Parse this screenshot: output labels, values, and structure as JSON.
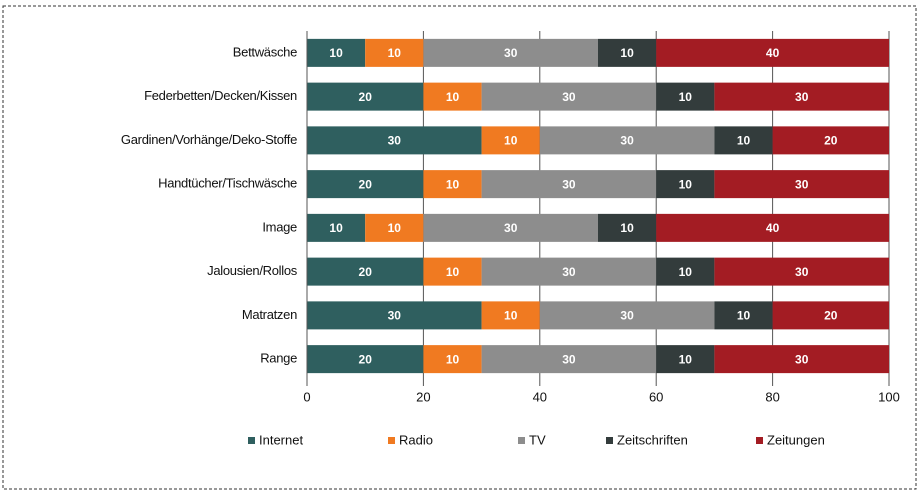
{
  "chart_data": {
    "type": "stacked-bar-horizontal",
    "categories": [
      "Bettwäsche",
      "Federbetten/Decken/Kissen",
      "Gardinen/Vorhänge/Deko-Stoffe",
      "Handtücher/Tischwäsche",
      "Image",
      "Jalousien/Rollos",
      "Matratzen",
      "Range"
    ],
    "series": [
      {
        "name": "Internet",
        "color": "#2f5f5f",
        "values": [
          10,
          20,
          30,
          20,
          10,
          20,
          30,
          20
        ]
      },
      {
        "name": "Radio",
        "color": "#f07a21",
        "values": [
          10,
          10,
          10,
          10,
          10,
          10,
          10,
          10
        ]
      },
      {
        "name": "TV",
        "color": "#8d8d8d",
        "values": [
          30,
          30,
          30,
          30,
          30,
          30,
          30,
          30
        ]
      },
      {
        "name": "Zeitschriften",
        "color": "#333c3c",
        "values": [
          10,
          10,
          10,
          10,
          10,
          10,
          10,
          10
        ]
      },
      {
        "name": "Zeitungen",
        "color": "#a31c23",
        "values": [
          40,
          30,
          20,
          30,
          40,
          30,
          20,
          30
        ]
      }
    ],
    "xlim": [
      0,
      100
    ],
    "xticks": [
      0,
      20,
      40,
      60,
      80,
      100
    ],
    "grid": true,
    "legend": "bottom"
  }
}
